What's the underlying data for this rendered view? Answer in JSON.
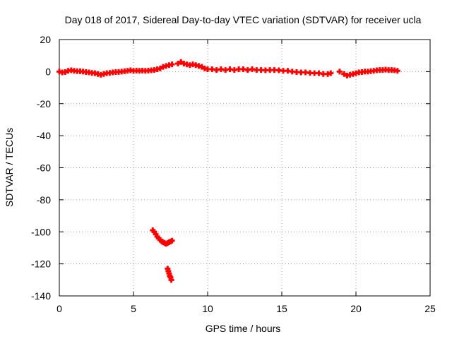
{
  "chart_data": {
    "type": "scatter",
    "title": "Day 018 of 2017, Sidereal Day-to-day VTEC variation (SDTVAR) for receiver ucla",
    "xlabel": "GPS time / hours",
    "ylabel": "SDTVAR / TECUs",
    "xlim": [
      0,
      25
    ],
    "ylim": [
      -140,
      20
    ],
    "x_ticks": [
      0,
      5,
      10,
      15,
      20,
      25
    ],
    "y_ticks": [
      20,
      0,
      -20,
      -40,
      -60,
      -80,
      -100,
      -120,
      -140
    ],
    "grid": true,
    "marker": "+",
    "series": [
      {
        "name": "SDTVAR",
        "color": "#ff0000",
        "points": [
          [
            0.0,
            0.0
          ],
          [
            0.2,
            -0.5
          ],
          [
            0.4,
            -0.3
          ],
          [
            0.6,
            0.5
          ],
          [
            0.8,
            0.8
          ],
          [
            1.0,
            0.5
          ],
          [
            1.2,
            0.3
          ],
          [
            1.4,
            0.2
          ],
          [
            1.6,
            0.0
          ],
          [
            1.8,
            -0.3
          ],
          [
            2.0,
            -0.5
          ],
          [
            2.2,
            -0.8
          ],
          [
            2.4,
            -1.0
          ],
          [
            2.6,
            -1.5
          ],
          [
            2.8,
            -2.0
          ],
          [
            3.0,
            -1.5
          ],
          [
            3.2,
            -1.0
          ],
          [
            3.4,
            -0.8
          ],
          [
            3.6,
            -0.5
          ],
          [
            3.8,
            -0.3
          ],
          [
            4.0,
            -0.2
          ],
          [
            4.2,
            0.0
          ],
          [
            4.4,
            0.2
          ],
          [
            4.6,
            0.5
          ],
          [
            4.8,
            0.8
          ],
          [
            5.0,
            0.5
          ],
          [
            5.2,
            0.6
          ],
          [
            5.4,
            0.5
          ],
          [
            5.6,
            0.6
          ],
          [
            5.8,
            0.5
          ],
          [
            6.0,
            0.6
          ],
          [
            6.2,
            0.8
          ],
          [
            6.4,
            1.0
          ],
          [
            6.6,
            1.5
          ],
          [
            6.8,
            2.0
          ],
          [
            7.0,
            3.0
          ],
          [
            7.2,
            3.5
          ],
          [
            7.4,
            4.0
          ],
          [
            7.6,
            4.5
          ],
          [
            8.0,
            5.0
          ],
          [
            8.2,
            6.0
          ],
          [
            8.4,
            5.0
          ],
          [
            8.6,
            4.5
          ],
          [
            8.8,
            4.0
          ],
          [
            9.0,
            4.5
          ],
          [
            9.2,
            4.0
          ],
          [
            9.4,
            3.5
          ],
          [
            9.6,
            3.0
          ],
          [
            9.8,
            2.0
          ],
          [
            10.0,
            1.5
          ],
          [
            10.3,
            1.5
          ],
          [
            10.6,
            1.0
          ],
          [
            10.9,
            1.5
          ],
          [
            11.2,
            1.0
          ],
          [
            11.5,
            1.5
          ],
          [
            11.8,
            1.0
          ],
          [
            12.1,
            1.5
          ],
          [
            12.4,
            1.5
          ],
          [
            12.7,
            1.0
          ],
          [
            13.0,
            1.5
          ],
          [
            13.3,
            1.0
          ],
          [
            13.6,
            1.0
          ],
          [
            13.9,
            0.8
          ],
          [
            14.2,
            1.0
          ],
          [
            14.5,
            1.0
          ],
          [
            14.8,
            0.8
          ],
          [
            15.1,
            0.5
          ],
          [
            15.4,
            0.5
          ],
          [
            15.7,
            0.0
          ],
          [
            16.0,
            -0.3
          ],
          [
            16.3,
            -0.5
          ],
          [
            16.6,
            -0.5
          ],
          [
            16.9,
            -0.8
          ],
          [
            17.2,
            -1.0
          ],
          [
            17.5,
            -1.0
          ],
          [
            17.8,
            -1.5
          ],
          [
            18.1,
            -1.5
          ],
          [
            18.3,
            -1.0
          ],
          [
            18.9,
            0.0
          ],
          [
            19.2,
            -1.5
          ],
          [
            19.4,
            -2.5
          ],
          [
            19.6,
            -2.0
          ],
          [
            19.8,
            -1.5
          ],
          [
            20.0,
            -1.0
          ],
          [
            20.2,
            -0.5
          ],
          [
            20.4,
            -0.3
          ],
          [
            20.6,
            0.0
          ],
          [
            20.8,
            0.0
          ],
          [
            21.0,
            0.3
          ],
          [
            21.2,
            0.5
          ],
          [
            21.4,
            0.8
          ],
          [
            21.6,
            1.0
          ],
          [
            21.8,
            1.0
          ],
          [
            22.0,
            1.2
          ],
          [
            22.2,
            1.0
          ],
          [
            22.4,
            1.0
          ],
          [
            22.6,
            0.8
          ],
          [
            22.8,
            0.5
          ],
          [
            6.3,
            -99
          ],
          [
            6.4,
            -100
          ],
          [
            6.5,
            -101.5
          ],
          [
            6.6,
            -103
          ],
          [
            6.7,
            -104
          ],
          [
            6.8,
            -105
          ],
          [
            6.9,
            -106
          ],
          [
            7.0,
            -106.5
          ],
          [
            7.1,
            -107
          ],
          [
            7.2,
            -107.5
          ],
          [
            7.3,
            -107
          ],
          [
            7.4,
            -106.5
          ],
          [
            7.5,
            -106
          ],
          [
            7.6,
            -105.5
          ],
          [
            7.3,
            -123
          ],
          [
            7.35,
            -124.5
          ],
          [
            7.4,
            -126
          ],
          [
            7.45,
            -127.5
          ],
          [
            7.5,
            -128.5
          ],
          [
            7.55,
            -130
          ]
        ]
      }
    ]
  }
}
